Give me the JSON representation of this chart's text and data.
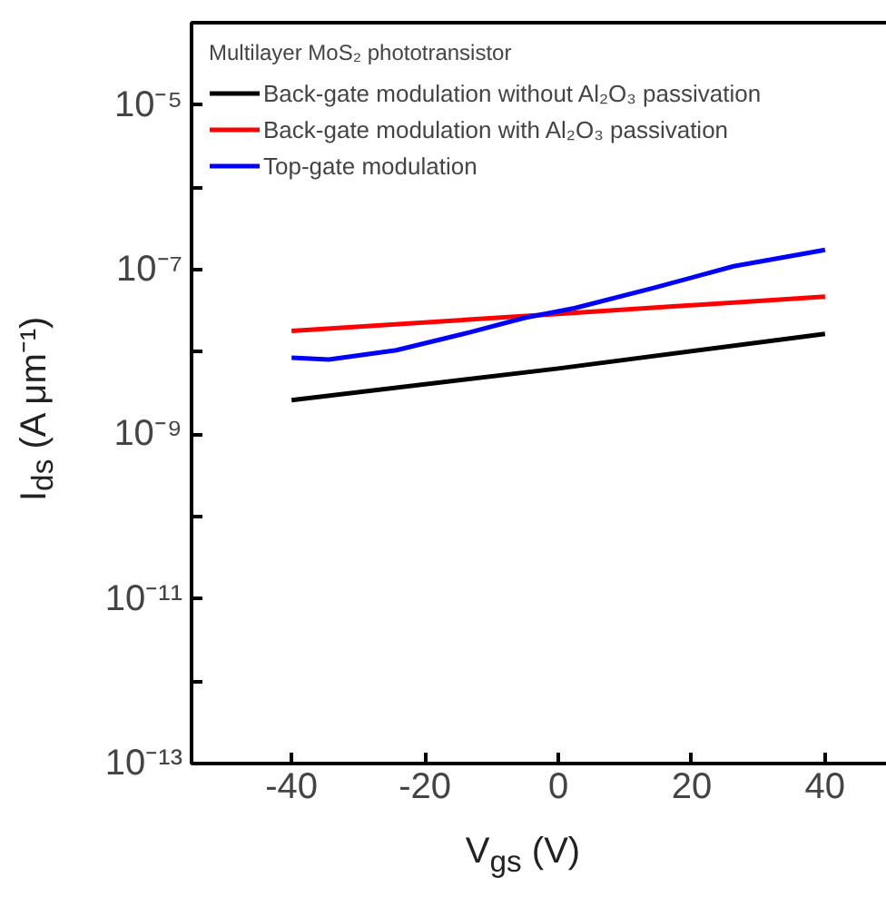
{
  "chart_data": {
    "type": "line",
    "xlabel": "V$_{gs}$ (V)",
    "ylabel": "I$_{ds}$ (A μm⁻¹)",
    "legend_title": "Multilayer MoS₂ phototransistor",
    "series": [
      {
        "name": "Back-gate modulation without Al₂O₃ passivation",
        "color": "#000000",
        "x": [
          -40,
          0,
          40
        ],
        "values": [
          2.6e-09,
          6.3e-09,
          1.66e-08
        ]
      },
      {
        "name": "Back-gate modulation with Al₂O₃ passivation",
        "color": "#ff0000",
        "x": [
          -40,
          0,
          40
        ],
        "values": [
          1.8e-08,
          2.9e-08,
          4.7e-08
        ]
      },
      {
        "name": "Top-gate modulation",
        "color": "#0000ff",
        "x": [
          -40,
          -34.4,
          -24.3,
          -13.2,
          -5,
          2.4,
          14.3,
          26.3,
          40
        ],
        "values": [
          8.5e-09,
          8.1e-09,
          1.05e-08,
          1.74e-08,
          2.6e-08,
          3.4e-08,
          6e-08,
          1.1e-07,
          1.74e-07
        ]
      }
    ],
    "log": "y",
    "grid": false,
    "legend": "top left",
    "marker": "none",
    "line_style": "solid",
    "xlim": [
      -55,
      52
    ],
    "xticks": [
      -40,
      -20,
      0,
      20,
      40
    ],
    "ylim": [
      1e-13,
      0.0001
    ],
    "yticks": [
      {
        "value": 1e-13,
        "label": "10⁻¹³"
      },
      {
        "value": 1e-12,
        "label": null
      },
      {
        "value": 1e-11,
        "label": "10⁻¹¹"
      },
      {
        "value": 1e-10,
        "label": null
      },
      {
        "value": 1e-09,
        "label": "10⁻⁹"
      },
      {
        "value": 1e-08,
        "label": null
      },
      {
        "value": 1e-07,
        "label": "10⁻⁷"
      },
      {
        "value": 1e-06,
        "label": null
      },
      {
        "value": 1e-05,
        "label": "10⁻⁵"
      }
    ]
  }
}
